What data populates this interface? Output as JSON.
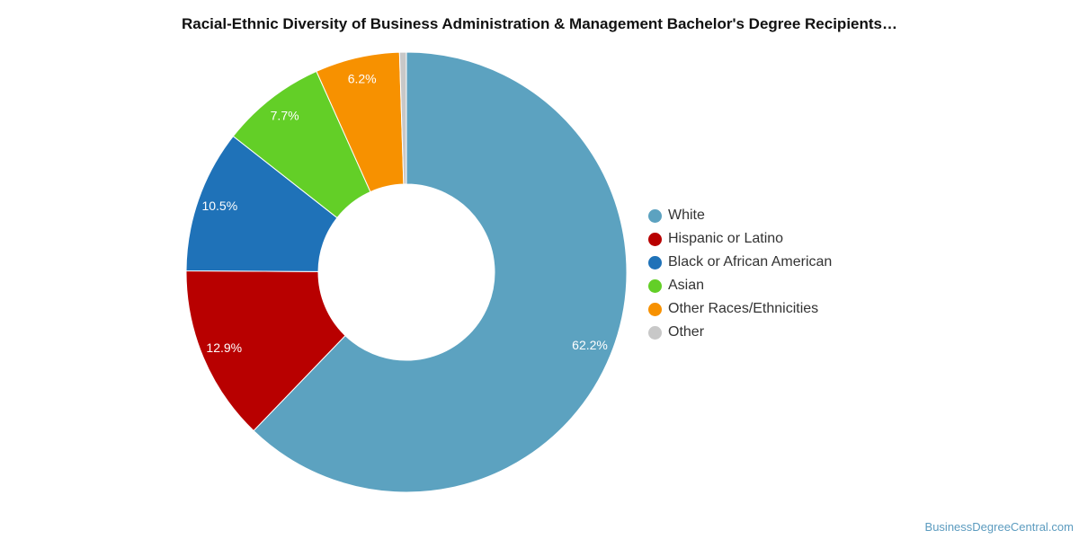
{
  "chart_data": {
    "type": "pie",
    "title": "Racial-Ethnic Diversity of Business Administration & Management Bachelor's Degree Recipients…",
    "categories": [
      "White",
      "Hispanic or Latino",
      "Black or African American",
      "Asian",
      "Other Races/Ethnicities",
      "Other"
    ],
    "values": [
      62.2,
      12.9,
      10.5,
      7.7,
      6.2,
      0.5
    ],
    "value_labels": [
      "62.2%",
      "12.9%",
      "10.5%",
      "7.7%",
      "6.2%",
      ""
    ],
    "colors": [
      "#5ca2c0",
      "#b80000",
      "#1f72b8",
      "#63cf27",
      "#f79100",
      "#c8c8c8"
    ],
    "donut": true,
    "legend_position": "right"
  },
  "footer": {
    "source": "BusinessDegreeCentral.com"
  }
}
